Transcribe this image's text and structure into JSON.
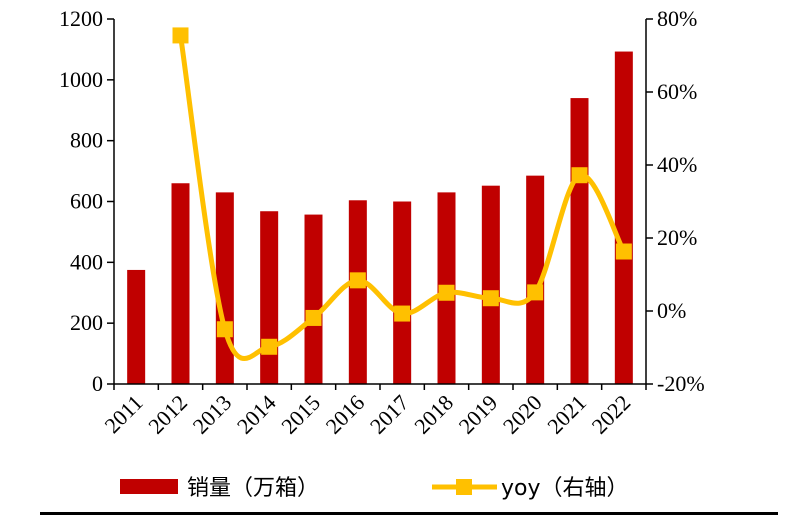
{
  "chart_data": {
    "type": "bar",
    "categories": [
      "2011",
      "2012",
      "2013",
      "2014",
      "2015",
      "2016",
      "2017",
      "2018",
      "2019",
      "2020",
      "2021",
      "2022"
    ],
    "series": [
      {
        "name": "销量（万箱）",
        "kind": "bar",
        "axis": "left",
        "color": "#C00000",
        "values": [
          375,
          660,
          630,
          568,
          557,
          604,
          600,
          630,
          652,
          685,
          940,
          1093
        ]
      },
      {
        "name": "yoy（右轴）",
        "kind": "line",
        "axis": "right",
        "color": "#FFC000",
        "marker": "square",
        "values": [
          null,
          75.5,
          -5.0,
          -9.8,
          -1.9,
          8.4,
          -0.7,
          5.0,
          3.5,
          5.1,
          37.2,
          16.3
        ]
      }
    ],
    "y_left": {
      "ylim": [
        0,
        1200
      ],
      "ticks": [
        "0",
        "200",
        "400",
        "600",
        "800",
        "1000",
        "1200"
      ]
    },
    "y_right": {
      "ylim": [
        -20,
        80
      ],
      "ticks": [
        "-20%",
        "0%",
        "20%",
        "40%",
        "60%",
        "80%"
      ]
    },
    "grid": false,
    "legend_position": "bottom",
    "title": "",
    "xlabel": "",
    "ylabel": ""
  }
}
